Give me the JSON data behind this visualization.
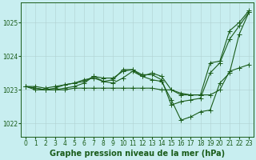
{
  "bg_color": "#c8eef0",
  "grid_color": "#b0d0d0",
  "line_color": "#1a5c1a",
  "title": "Graphe pression niveau de la mer (hPa)",
  "xlim": [
    -0.5,
    23.5
  ],
  "ylim": [
    1021.6,
    1025.6
  ],
  "yticks": [
    1022,
    1023,
    1024,
    1025
  ],
  "xticks": [
    0,
    1,
    2,
    3,
    4,
    5,
    6,
    7,
    8,
    9,
    10,
    11,
    12,
    13,
    14,
    15,
    16,
    17,
    18,
    19,
    20,
    21,
    22,
    23
  ],
  "lines": [
    {
      "x": [
        0,
        1,
        2,
        3,
        4,
        5,
        6,
        7,
        8,
        9,
        10,
        11,
        12,
        13,
        14,
        15,
        16,
        17,
        18,
        19,
        20,
        21,
        22,
        23
      ],
      "y": [
        1023.1,
        1023.1,
        1023.05,
        1023.1,
        1023.15,
        1023.2,
        1023.25,
        1023.4,
        1023.35,
        1023.35,
        1023.55,
        1023.6,
        1023.4,
        1023.5,
        1023.4,
        1023.0,
        1022.9,
        1022.85,
        1022.85,
        1023.8,
        1023.85,
        1024.75,
        1025.0,
        1025.35
      ]
    },
    {
      "x": [
        0,
        1,
        2,
        3,
        4,
        5,
        6,
        7,
        8,
        9,
        10,
        11,
        12,
        13,
        14,
        15,
        16,
        17,
        18,
        19,
        20,
        21,
        22,
        23
      ],
      "y": [
        1023.1,
        1023.05,
        1023.0,
        1023.05,
        1023.15,
        1023.2,
        1023.3,
        1023.35,
        1023.25,
        1023.3,
        1023.6,
        1023.6,
        1023.45,
        1023.45,
        1023.3,
        1022.55,
        1022.65,
        1022.7,
        1022.75,
        1023.5,
        1023.8,
        1024.5,
        1024.9,
        1025.3
      ]
    },
    {
      "x": [
        0,
        1,
        2,
        3,
        4,
        5,
        6,
        7,
        8,
        9,
        10,
        11,
        12,
        13,
        14,
        15,
        16,
        17,
        18,
        19,
        20,
        21,
        22,
        23
      ],
      "y": [
        1023.1,
        1023.0,
        1023.0,
        1023.0,
        1023.05,
        1023.1,
        1023.2,
        1023.4,
        1023.25,
        1023.2,
        1023.35,
        1023.55,
        1023.4,
        1023.3,
        1023.25,
        1022.7,
        1022.1,
        1022.2,
        1022.35,
        1022.4,
        1023.2,
        1023.5,
        1024.65,
        1025.3
      ]
    },
    {
      "x": [
        0,
        1,
        2,
        3,
        4,
        5,
        6,
        7,
        8,
        9,
        10,
        11,
        12,
        13,
        14,
        15,
        16,
        17,
        18,
        19,
        20,
        21,
        22,
        23
      ],
      "y": [
        1023.1,
        1023.05,
        1023.0,
        1023.0,
        1023.0,
        1023.05,
        1023.05,
        1023.05,
        1023.05,
        1023.05,
        1023.05,
        1023.05,
        1023.05,
        1023.05,
        1023.0,
        1023.0,
        1022.85,
        1022.85,
        1022.85,
        1022.85,
        1023.0,
        1023.55,
        1023.65,
        1023.75
      ]
    }
  ],
  "marker": "+",
  "markersize": 4,
  "linewidth": 0.8,
  "title_fontsize": 7,
  "tick_fontsize": 5.5
}
